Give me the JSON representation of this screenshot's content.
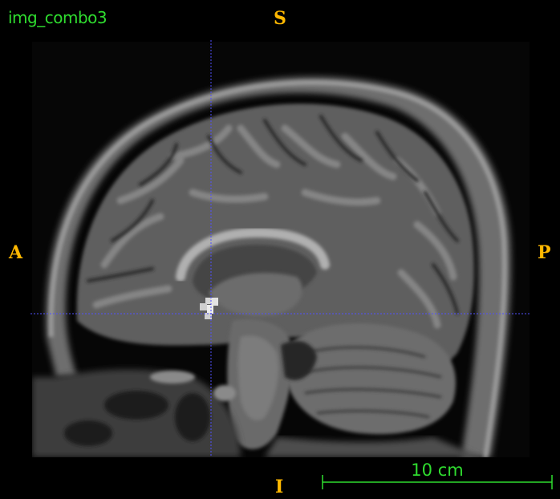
{
  "viewer": {
    "image_title": "img_combo3",
    "orientation": {
      "superior": "S",
      "inferior": "I",
      "anterior": "A",
      "posterior": "P"
    },
    "scale_bar": {
      "label": "10 cm"
    },
    "colors": {
      "title": "#2fdc2f",
      "orientation": "#ffb800",
      "crosshair": "#5050ff",
      "scale_bar": "#2fdc2f"
    }
  }
}
